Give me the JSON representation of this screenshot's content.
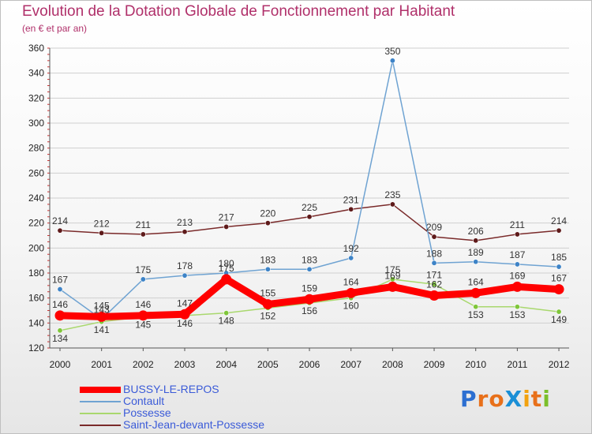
{
  "page": {
    "title": "Evolution de la Dotation Globale de Fonctionnement par Habitant",
    "subtitle": "(en € et par an)"
  },
  "brand": {
    "logo_text": "ProXiti",
    "letters": [
      "P",
      "r",
      "o",
      "X",
      "i",
      "t",
      "i"
    ],
    "letter_colors": [
      "#2c6fd1",
      "#e8701a",
      "#e8701a",
      "#1a8fd6",
      "#f2a20f",
      "#e8701a",
      "#7bbf2a"
    ]
  },
  "colors": {
    "title": "#b0306a",
    "legend_text": "#3b5bd8",
    "grid": "#cfcfcf"
  },
  "chart_data": {
    "type": "line",
    "title": "Evolution de la Dotation Globale de Fonctionnement par Habitant",
    "subtitle": "(en € et par an)",
    "xlabel": "",
    "ylabel": "",
    "ylim": [
      120,
      360
    ],
    "yticks": [
      120,
      140,
      160,
      180,
      200,
      220,
      240,
      260,
      280,
      300,
      320,
      340,
      360
    ],
    "x": [
      2000,
      2001,
      2002,
      2003,
      2004,
      2005,
      2006,
      2007,
      2008,
      2009,
      2010,
      2011,
      2012
    ],
    "legend_position": "bottom-left",
    "grid": true,
    "series": [
      {
        "name": "Saint-Jean-devant-Possesse",
        "color": "#7a2a2a",
        "marker_color": "#5e1a1a",
        "values": [
          214,
          212,
          211,
          213,
          217,
          220,
          225,
          231,
          235,
          209,
          206,
          211,
          214
        ],
        "labels": [
          "214",
          "212",
          "211",
          "213",
          "217",
          "220",
          "225",
          "231",
          "235",
          "209",
          "206",
          "211",
          "214"
        ]
      },
      {
        "name": "Possesse",
        "color": "#a9d86e",
        "marker_color": "#7fc63a",
        "values": [
          134,
          141,
          145,
          146,
          148,
          152,
          156,
          160,
          175,
          171,
          153,
          153,
          149
        ],
        "labels": [
          "134",
          "141",
          "145",
          "146",
          "148",
          "152",
          "156",
          "160",
          "175",
          "171",
          "153",
          "153",
          "149"
        ]
      },
      {
        "name": "Contault",
        "color": "#6fa3d2",
        "marker_color": "#3d83c7",
        "values": [
          167,
          143,
          175,
          178,
          180,
          183,
          183,
          192,
          350,
          188,
          189,
          187,
          185
        ],
        "labels": [
          "167",
          "143",
          "175",
          "178",
          "180",
          "183",
          "183",
          "192",
          "350",
          "188",
          "189",
          "187",
          "185"
        ]
      },
      {
        "name": "BUSSY-LE-REPOS",
        "color": "#ff0000",
        "marker_color": "#ff0000",
        "values": [
          146,
          145,
          146,
          147,
          175,
          155,
          159,
          164,
          169,
          162,
          164,
          169,
          167
        ],
        "labels": [
          "146",
          "145",
          "146",
          "147",
          "175",
          "155",
          "159",
          "164",
          "169",
          "162",
          "164",
          "169",
          "167"
        ]
      }
    ]
  },
  "legend": {
    "items": [
      {
        "label": "BUSSY-LE-REPOS",
        "color": "#ff0000"
      },
      {
        "label": "Contault",
        "color": "#6fa3d2"
      },
      {
        "label": "Possesse",
        "color": "#a9d86e"
      },
      {
        "label": "Saint-Jean-devant-Possesse",
        "color": "#7a2a2a"
      }
    ]
  }
}
